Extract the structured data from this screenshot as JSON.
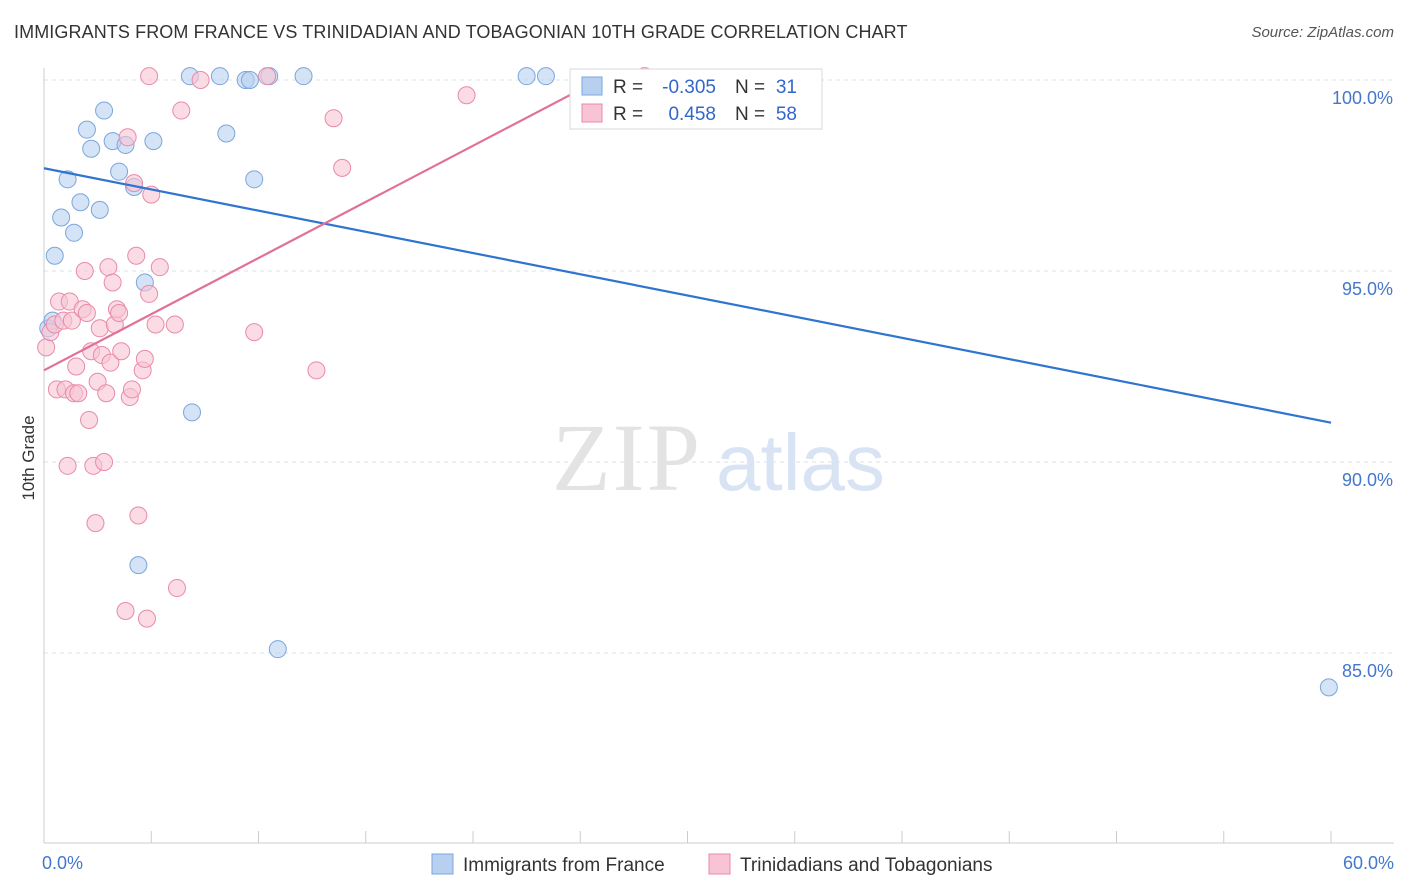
{
  "title": "IMMIGRANTS FROM FRANCE VS TRINIDADIAN AND TOBAGONIAN 10TH GRADE CORRELATION CHART",
  "source": "Source: ZipAtlas.com",
  "watermark": {
    "zip": "ZIP",
    "atlas": "atlas"
  },
  "colors": {
    "blue_fill": "#b8d0f0",
    "blue_stroke": "#7aa6dc",
    "blue_line": "#2f74d0",
    "pink_fill": "#f8c4d4",
    "pink_stroke": "#e88aaa",
    "pink_line": "#e0709a",
    "tick_text": "#4477cc",
    "grid": "#dde3ea"
  },
  "stats_box": {
    "rows": [
      {
        "series": "blue",
        "r_label": "R =",
        "r_value": "-0.305",
        "n_label": "N =",
        "n_value": "31"
      },
      {
        "series": "pink",
        "r_label": "R =",
        "r_value": "0.458",
        "n_label": "N =",
        "n_value": "58"
      }
    ]
  },
  "chart_data": {
    "type": "scatter",
    "title": "IMMIGRANTS FROM FRANCE VS TRINIDADIAN AND TOBAGONIAN 10TH GRADE CORRELATION CHART",
    "xlabel": "",
    "ylabel": "10th Grade",
    "xlim": [
      0,
      60
    ],
    "ylim": [
      80.5,
      100.5
    ],
    "x_tick_labels": [
      {
        "value": 0,
        "label": "0.0%"
      },
      {
        "value": 60,
        "label": "60.0%"
      }
    ],
    "y_tick_labels": [
      {
        "value": 100,
        "label": "100.0%"
      },
      {
        "value": 95,
        "label": "95.0%"
      },
      {
        "value": 90,
        "label": "90.0%"
      },
      {
        "value": 85,
        "label": "85.0%"
      }
    ],
    "legend": {
      "position": "bottom",
      "entries": [
        "Immigrants from France",
        "Trinidadians and Tobagonians"
      ]
    },
    "series": [
      {
        "name": "Immigrants from France",
        "color": "blue",
        "trend": {
          "x": [
            0,
            60
          ],
          "y": [
            97.69,
            91.03
          ]
        },
        "points": [
          [
            0.2,
            93.5
          ],
          [
            0.4,
            93.7
          ],
          [
            0.5,
            95.4
          ],
          [
            0.8,
            96.4
          ],
          [
            1.1,
            97.4
          ],
          [
            1.4,
            96.0
          ],
          [
            1.7,
            96.8
          ],
          [
            2.0,
            98.7
          ],
          [
            2.2,
            98.2
          ],
          [
            2.6,
            96.6
          ],
          [
            2.8,
            99.2
          ],
          [
            3.2,
            98.4
          ],
          [
            3.5,
            97.6
          ],
          [
            3.8,
            98.3
          ],
          [
            4.2,
            97.2
          ],
          [
            4.7,
            94.7
          ],
          [
            5.1,
            98.4
          ],
          [
            6.9,
            91.3
          ],
          [
            6.8,
            100.1
          ],
          [
            8.2,
            100.1
          ],
          [
            8.5,
            98.6
          ],
          [
            9.4,
            100.0
          ],
          [
            9.6,
            100.0
          ],
          [
            9.8,
            97.4
          ],
          [
            10.5,
            100.1
          ],
          [
            10.9,
            85.1
          ],
          [
            12.1,
            100.1
          ],
          [
            22.5,
            100.1
          ],
          [
            23.4,
            100.1
          ],
          [
            4.4,
            87.3
          ],
          [
            59.9,
            84.1
          ]
        ]
      },
      {
        "name": "Trinidadians and Tobagonians",
        "color": "pink",
        "trend": {
          "x": [
            0,
            26.2
          ],
          "y": [
            92.4,
            100.1
          ]
        },
        "points": [
          [
            0.1,
            93.0
          ],
          [
            0.3,
            93.4
          ],
          [
            0.5,
            93.6
          ],
          [
            0.6,
            91.9
          ],
          [
            0.7,
            94.2
          ],
          [
            0.9,
            93.7
          ],
          [
            1.0,
            91.9
          ],
          [
            1.1,
            89.9
          ],
          [
            1.2,
            94.2
          ],
          [
            1.3,
            93.7
          ],
          [
            1.4,
            91.8
          ],
          [
            1.5,
            92.5
          ],
          [
            1.6,
            91.8
          ],
          [
            1.8,
            94.0
          ],
          [
            1.9,
            95.0
          ],
          [
            2.0,
            93.9
          ],
          [
            2.1,
            91.1
          ],
          [
            2.2,
            92.9
          ],
          [
            2.3,
            89.9
          ],
          [
            2.4,
            88.4
          ],
          [
            2.5,
            92.1
          ],
          [
            2.6,
            93.5
          ],
          [
            2.7,
            92.8
          ],
          [
            2.8,
            90.0
          ],
          [
            2.9,
            91.8
          ],
          [
            3.0,
            95.1
          ],
          [
            3.1,
            92.6
          ],
          [
            3.2,
            94.7
          ],
          [
            3.3,
            93.6
          ],
          [
            3.4,
            94.0
          ],
          [
            3.5,
            93.9
          ],
          [
            3.6,
            92.9
          ],
          [
            3.8,
            86.1
          ],
          [
            3.9,
            98.5
          ],
          [
            4.0,
            91.7
          ],
          [
            4.1,
            91.9
          ],
          [
            4.2,
            97.3
          ],
          [
            4.3,
            95.4
          ],
          [
            4.4,
            88.6
          ],
          [
            4.6,
            92.4
          ],
          [
            4.7,
            92.7
          ],
          [
            4.8,
            85.9
          ],
          [
            4.9,
            94.4
          ],
          [
            5.0,
            97.0
          ],
          [
            5.2,
            93.6
          ],
          [
            5.4,
            95.1
          ],
          [
            6.1,
            93.6
          ],
          [
            6.2,
            86.7
          ],
          [
            6.4,
            99.2
          ],
          [
            7.3,
            100.0
          ],
          [
            4.9,
            100.1
          ],
          [
            9.8,
            93.4
          ],
          [
            10.4,
            100.1
          ],
          [
            12.7,
            92.4
          ],
          [
            13.5,
            99.0
          ],
          [
            13.9,
            97.7
          ],
          [
            19.7,
            99.6
          ],
          [
            28.0,
            100.1
          ]
        ]
      }
    ]
  }
}
